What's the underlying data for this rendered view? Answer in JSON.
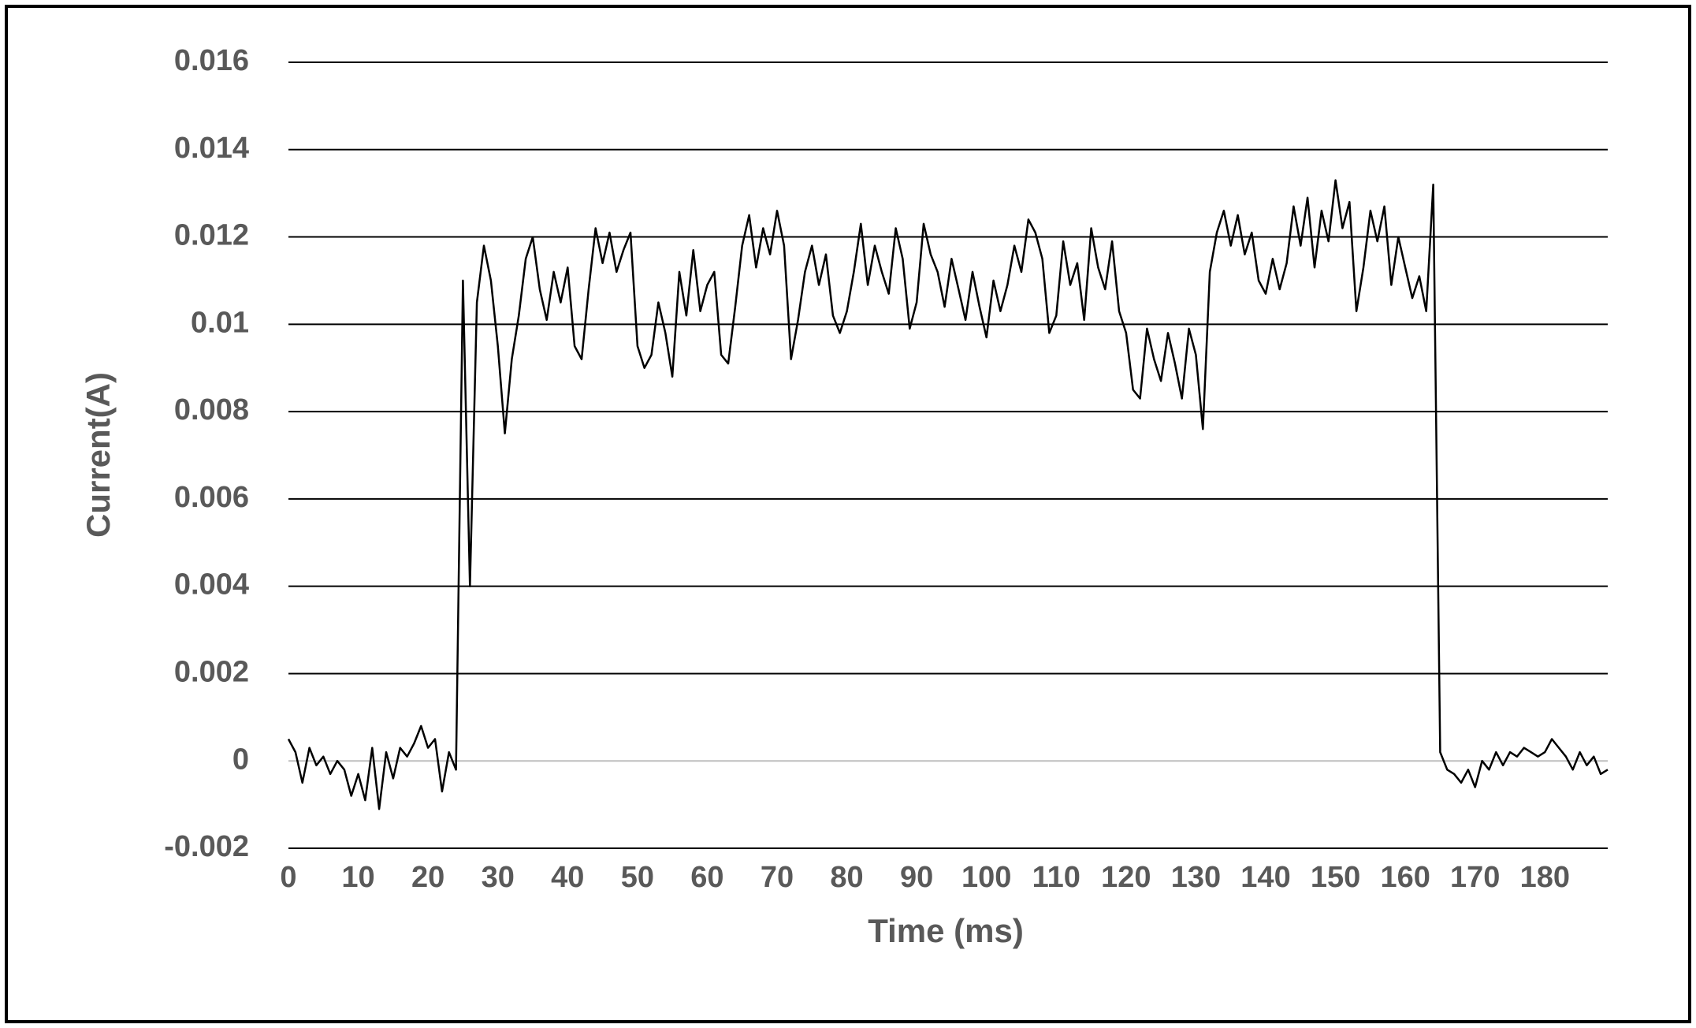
{
  "chart_data": {
    "type": "line",
    "x_label": "Time (ms)",
    "y_label": "Current(A)",
    "x": [
      0,
      1,
      2,
      3,
      4,
      5,
      6,
      7,
      8,
      9,
      10,
      11,
      12,
      13,
      14,
      15,
      16,
      17,
      18,
      19,
      20,
      21,
      22,
      23,
      24,
      25,
      26,
      27,
      28,
      29,
      30,
      31,
      32,
      33,
      34,
      35,
      36,
      37,
      38,
      39,
      40,
      41,
      42,
      43,
      44,
      45,
      46,
      47,
      48,
      49,
      50,
      51,
      52,
      53,
      54,
      55,
      56,
      57,
      58,
      59,
      60,
      61,
      62,
      63,
      64,
      65,
      66,
      67,
      68,
      69,
      70,
      71,
      72,
      73,
      74,
      75,
      76,
      77,
      78,
      79,
      80,
      81,
      82,
      83,
      84,
      85,
      86,
      87,
      88,
      89,
      90,
      91,
      92,
      93,
      94,
      95,
      96,
      97,
      98,
      99,
      100,
      101,
      102,
      103,
      104,
      105,
      106,
      107,
      108,
      109,
      110,
      111,
      112,
      113,
      114,
      115,
      116,
      117,
      118,
      119,
      120,
      121,
      122,
      123,
      124,
      125,
      126,
      127,
      128,
      129,
      130,
      131,
      132,
      133,
      134,
      135,
      136,
      137,
      138,
      139,
      140,
      141,
      142,
      143,
      144,
      145,
      146,
      147,
      148,
      149,
      150,
      151,
      152,
      153,
      154,
      155,
      156,
      157,
      158,
      159,
      160,
      161,
      162,
      163,
      164,
      165,
      166,
      167,
      168,
      169,
      170,
      171,
      172,
      173,
      174,
      175,
      176,
      177,
      178,
      179,
      180,
      181,
      182,
      183,
      184,
      185,
      186,
      187,
      188,
      189
    ],
    "series": [
      {
        "name": "Current",
        "color": "#000000",
        "values": [
          0.0005,
          0.0002,
          -0.0005,
          0.0003,
          -0.0001,
          0.0001,
          -0.0003,
          0,
          -0.0002,
          -0.0008,
          -0.0003,
          -0.0009,
          0.0003,
          -0.0011,
          0.0002,
          -0.0004,
          0.0003,
          0.0001,
          0.0004,
          0.0008,
          0.0003,
          0.0005,
          -0.0007,
          0.0002,
          -0.0002,
          0.011,
          0.004,
          0.0105,
          0.0118,
          0.011,
          0.0095,
          0.0075,
          0.0092,
          0.0102,
          0.0115,
          0.012,
          0.0108,
          0.0101,
          0.0112,
          0.0105,
          0.0113,
          0.0095,
          0.0092,
          0.0108,
          0.0122,
          0.0114,
          0.0121,
          0.0112,
          0.0117,
          0.0121,
          0.0095,
          0.009,
          0.0093,
          0.0105,
          0.0098,
          0.0088,
          0.0112,
          0.0102,
          0.0117,
          0.0103,
          0.0109,
          0.0112,
          0.0093,
          0.0091,
          0.0104,
          0.0118,
          0.0125,
          0.0113,
          0.0122,
          0.0116,
          0.0126,
          0.0118,
          0.0092,
          0.0101,
          0.0112,
          0.0118,
          0.0109,
          0.0116,
          0.0102,
          0.0098,
          0.0103,
          0.0112,
          0.0123,
          0.0109,
          0.0118,
          0.0112,
          0.0107,
          0.0122,
          0.0115,
          0.0099,
          0.0105,
          0.0123,
          0.0116,
          0.0112,
          0.0104,
          0.0115,
          0.0108,
          0.0101,
          0.0112,
          0.0104,
          0.0097,
          0.011,
          0.0103,
          0.0109,
          0.0118,
          0.0112,
          0.0124,
          0.0121,
          0.0115,
          0.0098,
          0.0102,
          0.0119,
          0.0109,
          0.0114,
          0.0101,
          0.0122,
          0.0113,
          0.0108,
          0.0119,
          0.0103,
          0.0098,
          0.0085,
          0.0083,
          0.0099,
          0.0092,
          0.0087,
          0.0098,
          0.0091,
          0.0083,
          0.0099,
          0.0093,
          0.0076,
          0.0112,
          0.0121,
          0.0126,
          0.0118,
          0.0125,
          0.0116,
          0.0121,
          0.011,
          0.0107,
          0.0115,
          0.0108,
          0.0114,
          0.0127,
          0.0118,
          0.0129,
          0.0113,
          0.0126,
          0.0119,
          0.0133,
          0.0122,
          0.0128,
          0.0103,
          0.0113,
          0.0126,
          0.0119,
          0.0127,
          0.0109,
          0.012,
          0.0113,
          0.0106,
          0.0111,
          0.0103,
          0.0132,
          0.0002,
          -0.0002,
          -0.0003,
          -0.0005,
          -0.0002,
          -0.0006,
          0,
          -0.0002,
          0.0002,
          -0.0001,
          0.0002,
          0.0001,
          0.0003,
          0.0002,
          0.0001,
          0.0002,
          0.0005,
          0.0003,
          0.0001,
          -0.0002,
          0.0002,
          -0.0001,
          0.0001,
          -0.0003,
          -0.0002
        ]
      }
    ],
    "xlim": [
      0,
      189
    ],
    "xticks": [
      0,
      10,
      20,
      30,
      40,
      50,
      60,
      70,
      80,
      90,
      100,
      110,
      120,
      130,
      140,
      150,
      160,
      170,
      180
    ],
    "ylim": [
      -0.002,
      0.016
    ],
    "yticks": [
      -0.002,
      0,
      0.002,
      0.004,
      0.006,
      0.008,
      0.01,
      0.012,
      0.014,
      0.016
    ],
    "grid": true
  }
}
